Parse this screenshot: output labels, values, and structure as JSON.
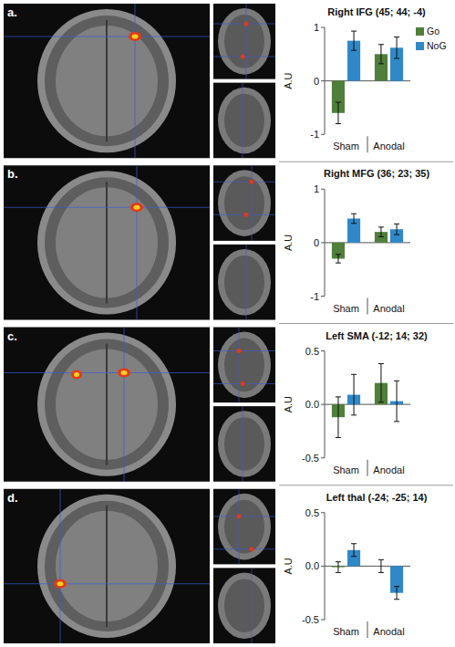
{
  "chart_data": [
    {
      "type": "bar",
      "title": "Right IFG (45; 44; -4)",
      "annotations": [
        "a."
      ],
      "y_label": "A.U",
      "categories": [
        "Sham",
        "Anodal"
      ],
      "series": [
        {
          "name": "Go",
          "color": "#4f7f3a",
          "values": [
            -0.6,
            0.5
          ],
          "errors": [
            0.2,
            0.18
          ]
        },
        {
          "name": "NoG",
          "color": "#2f88c8",
          "values": [
            0.75,
            0.62
          ],
          "errors": [
            0.18,
            0.2
          ]
        }
      ],
      "ylim": [
        -1,
        1
      ],
      "yticks": [
        -1,
        0,
        1
      ],
      "grid": false,
      "legend": "right"
    },
    {
      "type": "bar",
      "title": "Right MFG (36; 23; 35)",
      "annotations": [
        "b."
      ],
      "y_label": "A.U",
      "categories": [
        "Sham",
        "Anodal"
      ],
      "series": [
        {
          "name": "Go",
          "color": "#4f7f3a",
          "values": [
            -0.3,
            0.2
          ],
          "errors": [
            0.08,
            0.09
          ]
        },
        {
          "name": "NoG",
          "color": "#2f88c8",
          "values": [
            0.45,
            0.25
          ],
          "errors": [
            0.09,
            0.1
          ]
        }
      ],
      "ylim": [
        -1,
        1
      ],
      "yticks": [
        -1,
        0,
        1
      ],
      "grid": false
    },
    {
      "type": "bar",
      "title": "Left SMA (-12; 14; 32)",
      "annotations": [
        "c."
      ],
      "y_label": "A.U",
      "categories": [
        "Sham",
        "Anodal"
      ],
      "series": [
        {
          "name": "Go",
          "color": "#4f7f3a",
          "values": [
            -0.12,
            0.2
          ],
          "errors": [
            0.19,
            0.18
          ]
        },
        {
          "name": "NoG",
          "color": "#2f88c8",
          "values": [
            0.09,
            0.03
          ],
          "errors": [
            0.19,
            0.19
          ]
        }
      ],
      "ylim": [
        -0.5,
        0.5
      ],
      "yticks": [
        -0.5,
        {
          "value": 0,
          "label": "0.0"
        },
        0.5
      ],
      "grid": false
    },
    {
      "type": "bar",
      "title": "Left thal (-24; -25; 14)",
      "annotations": [
        "d."
      ],
      "y_label": "A.U",
      "categories": [
        "Sham",
        "Anodal"
      ],
      "series": [
        {
          "name": "Go",
          "color": "#4f7f3a",
          "values": [
            -0.01,
            0.0
          ],
          "errors": [
            0.05,
            0.06
          ]
        },
        {
          "name": "NoG",
          "color": "#2f88c8",
          "values": [
            0.15,
            -0.25
          ],
          "errors": [
            0.06,
            0.06
          ]
        }
      ],
      "ylim": [
        -0.5,
        0.5
      ],
      "yticks": [
        -0.5,
        {
          "value": 0,
          "label": "0.0"
        },
        0.5
      ],
      "grid": false
    }
  ]
}
